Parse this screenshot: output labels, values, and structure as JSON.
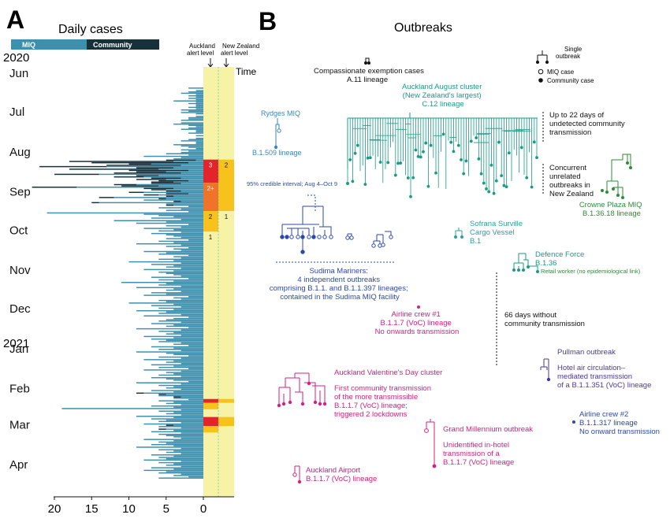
{
  "panel_a": {
    "letter": "A",
    "title": "Daily cases",
    "legend": {
      "miq": "MIQ",
      "community": "Community"
    },
    "year_2020": "2020",
    "year_2021": "2021",
    "time_label": "Time",
    "auckland_header": "Auckland alert level",
    "nz_header": "New Zealand alert level",
    "months": [
      "Jun",
      "Jul",
      "Aug",
      "Sep",
      "Oct",
      "Nov",
      "Dec",
      "Jan",
      "Feb",
      "Mar",
      "Apr"
    ],
    "x_ticks": [
      "20",
      "15",
      "10",
      "5",
      "0"
    ],
    "auckland_levels": [
      {
        "label": "3",
        "start_date": "Aug 12",
        "end_date": "Aug 30",
        "level": 3
      },
      {
        "label": "2+",
        "start_date": "Aug 30",
        "end_date": "Sep 21",
        "level": 2.5
      },
      {
        "label": "2",
        "start_date": "Sep 21",
        "end_date": "Oct 7",
        "level": 2
      },
      {
        "label": "1",
        "start_date": "Oct 7",
        "end_date": "Feb 14",
        "level": 1
      },
      {
        "label": "",
        "start_date": "Feb 14",
        "end_date": "Feb 17",
        "level": 3
      },
      {
        "label": "",
        "start_date": "Feb 17",
        "end_date": "Feb 22",
        "level": 2
      },
      {
        "label": "",
        "start_date": "Feb 28",
        "end_date": "Mar 7",
        "level": 3
      },
      {
        "label": "",
        "start_date": "Mar 7",
        "end_date": "Mar 12",
        "level": 2
      }
    ],
    "nz_levels": [
      {
        "label": "2",
        "start_date": "Aug 12",
        "end_date": "Sep 21",
        "level": 2
      },
      {
        "label": "1",
        "start_date": "Sep 21",
        "end_date": "Feb 14",
        "level": 1
      },
      {
        "label": "",
        "start_date": "Feb 14",
        "end_date": "Feb 17",
        "level": 2
      },
      {
        "label": "",
        "start_date": "Feb 28",
        "end_date": "Mar 7",
        "level": 2
      }
    ]
  },
  "panel_b": {
    "letter": "B",
    "title": "Outbreaks",
    "key": {
      "single": "Single outbreak",
      "miq": "MIQ case",
      "community": "Community case"
    },
    "annotations": {
      "ci": "95% credible interval; Aug 4–Oct 9",
      "undetected": [
        "Up to 22 days of",
        "undetected community",
        "transmission"
      ],
      "concurrent": [
        "Concurrent",
        "unrelated",
        "outbreaks in",
        "New Zealand"
      ],
      "gap": [
        "66 days without",
        "community transmission"
      ]
    },
    "outbreaks": [
      {
        "lines": [
          "Compassionate exemption cases",
          "A.11 lineage"
        ],
        "color": "#111111"
      },
      {
        "lines": [
          "Auckland August cluster",
          "(New Zealand's largest)",
          "C.12 lineage"
        ],
        "color": "#1a9a85"
      },
      {
        "lines": [
          "Rydges MIQ"
        ],
        "lineage": "B.1.509 lineage",
        "color": "#3a86b8"
      },
      {
        "lines": [
          "Crowne Plaza MIQ",
          "B.1.36.18 lineage"
        ],
        "color": "#2e8b3a"
      },
      {
        "lines": [
          "Sofrana Surville",
          "Cargo Vessel",
          "B.1"
        ],
        "color": "#2aa0a0"
      },
      {
        "lines": [
          "Defence Force",
          "B.1.36"
        ],
        "extra": "Retail worker (no epidemiological link)",
        "color": "#1a9a85"
      },
      {
        "lines": [
          "Sudima Mariners:",
          "4 independent outbreaks",
          "comprising B.1.1. and B.1.1.397 lineages;",
          "contained in the Sudima MIQ facility"
        ],
        "color": "#2b4aa8"
      },
      {
        "lines": [
          "Airline crew #1",
          "B.1.1.7 (VoC) lineage",
          "No onwards transmission"
        ],
        "color": "#d6207f"
      },
      {
        "lines": [
          "Pullman outbreak"
        ],
        "desc": [
          "Hotel air circulation–",
          "mediated transmission",
          "of a B.1.1.351 (VoC) lineage"
        ],
        "color": "#4b3a9c"
      },
      {
        "lines": [
          "Auckland Valentine's Day cluster"
        ],
        "desc": [
          "First community transmission",
          "of the more transmissible",
          "B.1.1.7 (VoC) lineage;",
          "triggered 2 lockdowns"
        ],
        "color": "#d6207f"
      },
      {
        "lines": [
          "Airline crew #2",
          "B.1.1.317 lineage",
          "No onward transmission"
        ],
        "color": "#2b4aa8"
      },
      {
        "lines": [
          "Grand Millennium outbreak"
        ],
        "desc": [
          "Unidentified in-hotel",
          "transmission of a",
          "B.1.1.7 (VoC) lineage"
        ],
        "color": "#d6207f"
      },
      {
        "lines": [
          "Auckland Airport",
          "B.1.1.7 (VoC) lineage"
        ],
        "color": "#d6207f"
      }
    ]
  },
  "colors": {
    "miq": "#3e8fad",
    "community": "#17303a",
    "level1": "#f6f3a6",
    "level2": "#f7c21c",
    "level2plus": "#f0732a",
    "level3": "#e3242b"
  },
  "chart_data": {
    "type": "bar",
    "orientation": "horizontal",
    "title": "Daily cases",
    "x_ticks": [
      20,
      15,
      10,
      5,
      0
    ],
    "xlim": [
      0,
      21
    ],
    "start_date": "2020-06-01",
    "end_date": "2021-04-30",
    "series": [
      {
        "name": "MIQ",
        "values": [
          0,
          0,
          0,
          0,
          0,
          0,
          0,
          0,
          0,
          0,
          0,
          0,
          0,
          0,
          0,
          0,
          2,
          0,
          1,
          2,
          3,
          1,
          2,
          1,
          2,
          1,
          4,
          1,
          2,
          1,
          1,
          2,
          1,
          3,
          2,
          3,
          1,
          0,
          1,
          2,
          2,
          3,
          0,
          3,
          4,
          2,
          1,
          2,
          3,
          1,
          1,
          2,
          0,
          1,
          0,
          1,
          2,
          3,
          1,
          1,
          4,
          3,
          2,
          1,
          3,
          2,
          3,
          5,
          2,
          8,
          3,
          4,
          1,
          4,
          2,
          7,
          3,
          13,
          4,
          6,
          2,
          5,
          3,
          14,
          6,
          8,
          3,
          5,
          2,
          4,
          3,
          9,
          6,
          17,
          4,
          5,
          3,
          8,
          2,
          6,
          4,
          12,
          5,
          8,
          3,
          14,
          5,
          4,
          2,
          6,
          3,
          5,
          2,
          21,
          8,
          6,
          4,
          7,
          3,
          12,
          5,
          9,
          2,
          5,
          3,
          8,
          4,
          6,
          3,
          7,
          5,
          4,
          3,
          5,
          2,
          6,
          4,
          9,
          3,
          5,
          2,
          4,
          3,
          8,
          5,
          6,
          2,
          4,
          3,
          6,
          4,
          10,
          3,
          7,
          4,
          5,
          3,
          8,
          4,
          6,
          5,
          4,
          3,
          7,
          2,
          6,
          4,
          11,
          5,
          6,
          3,
          9,
          4,
          5,
          3,
          7,
          5,
          8,
          2,
          4,
          3,
          6,
          5,
          10,
          4,
          7,
          3,
          6,
          4,
          9,
          5,
          6,
          3,
          8,
          2,
          4,
          5,
          6,
          3,
          7,
          4,
          5,
          2,
          9,
          3,
          6,
          4,
          5,
          3,
          8,
          4,
          7,
          5,
          6,
          3,
          4,
          2,
          7,
          4,
          6,
          3,
          9,
          5,
          4,
          2,
          6,
          3,
          8,
          4,
          5,
          3,
          7,
          4,
          6,
          2,
          8,
          3,
          5,
          4,
          6,
          3,
          7,
          5,
          4,
          2,
          9,
          3,
          6,
          4,
          5,
          3,
          7,
          4,
          8,
          5,
          6,
          3,
          4,
          2,
          6,
          4,
          5,
          3,
          7,
          4,
          19,
          3,
          6,
          4,
          5,
          3,
          9,
          4,
          7,
          5,
          6,
          3,
          8,
          4,
          6,
          3,
          5,
          4,
          7,
          3,
          6,
          5,
          4,
          3,
          8,
          4,
          6,
          5,
          7,
          4,
          9,
          3,
          6,
          4,
          5,
          3,
          7,
          4,
          6,
          5,
          8,
          3,
          6,
          4,
          5,
          3,
          7,
          4,
          8,
          5,
          6,
          3,
          4,
          2,
          6
        ]
      },
      {
        "name": "Community",
        "values": [
          0,
          0,
          0,
          0,
          0,
          0,
          0,
          0,
          0,
          0,
          0,
          0,
          0,
          0,
          0,
          0,
          0,
          0,
          0,
          0,
          0,
          0,
          0,
          0,
          0,
          0,
          0,
          0,
          0,
          0,
          0,
          0,
          0,
          0,
          0,
          0,
          0,
          0,
          0,
          0,
          0,
          0,
          0,
          0,
          0,
          0,
          0,
          0,
          0,
          0,
          0,
          0,
          0,
          0,
          0,
          0,
          0,
          0,
          0,
          0,
          0,
          0,
          0,
          0,
          0,
          0,
          0,
          0,
          0,
          0,
          0,
          0,
          4,
          14,
          13,
          3,
          10,
          9,
          5,
          12,
          8,
          4,
          9,
          6,
          3,
          4,
          4,
          4,
          4,
          3,
          4,
          3,
          5,
          6,
          4,
          2,
          2,
          2,
          3,
          2,
          1,
          2,
          1,
          0,
          1,
          1,
          0,
          1,
          0,
          0,
          0,
          0,
          0,
          0,
          0,
          0,
          0,
          0,
          0,
          0,
          0,
          0,
          0,
          0,
          0,
          0,
          0,
          0,
          0,
          0,
          0,
          0,
          0,
          0,
          0,
          0,
          0,
          0,
          0,
          0,
          0,
          0,
          0,
          0,
          0,
          0,
          0,
          0,
          0,
          0,
          0,
          0,
          0,
          0,
          0,
          0,
          0,
          0,
          0,
          0,
          0,
          0,
          0,
          0,
          0,
          0,
          0,
          0,
          0,
          0,
          0,
          0,
          0,
          0,
          0,
          0,
          0,
          0,
          0,
          0,
          0,
          0,
          0,
          0,
          0,
          0,
          0,
          0,
          0,
          0,
          0,
          0,
          0,
          0,
          0,
          0,
          0,
          0,
          0,
          0,
          0,
          0,
          0,
          0,
          0,
          0,
          0,
          0,
          0,
          0,
          0,
          0,
          0,
          0,
          0,
          0,
          0,
          0,
          0,
          0,
          0,
          0,
          0,
          0,
          0,
          0,
          0,
          0,
          0,
          0,
          0,
          0,
          0,
          0,
          0,
          0,
          0,
          0,
          0,
          0,
          0,
          0,
          0,
          0,
          0,
          0,
          0,
          0,
          0,
          0,
          0,
          0,
          0,
          1,
          1,
          0,
          1,
          0,
          0,
          0,
          0,
          0,
          0,
          0,
          0,
          0,
          0,
          0,
          0,
          0,
          0,
          0,
          0,
          0,
          0,
          0,
          0,
          0,
          1,
          0,
          0,
          1,
          0,
          0,
          0,
          0,
          0,
          0,
          0,
          0,
          0,
          0,
          0,
          0,
          0,
          0,
          0,
          0,
          0,
          0,
          0,
          0,
          0,
          0,
          0,
          0,
          0,
          0,
          0,
          0,
          0,
          0,
          0,
          0,
          0,
          0,
          0,
          0,
          0,
          0,
          0,
          0,
          0,
          0,
          0,
          0,
          0,
          0,
          0,
          0,
          0,
          0,
          0,
          0,
          0,
          0,
          0,
          0,
          0
        ]
      }
    ]
  }
}
